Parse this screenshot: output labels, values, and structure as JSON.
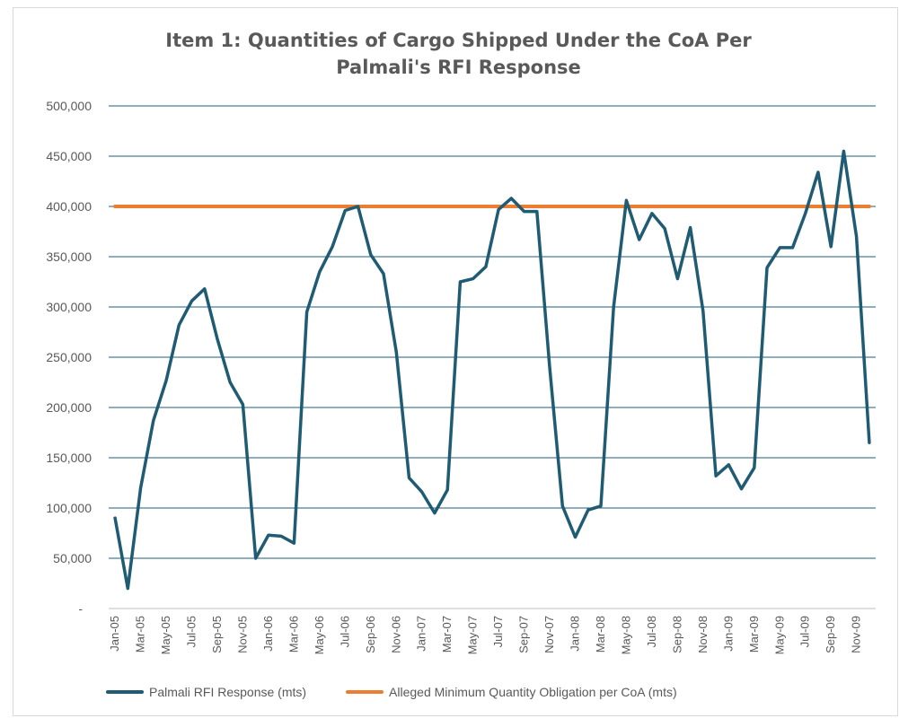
{
  "chart_data": {
    "type": "line",
    "title": "Item 1:  Quantities of Cargo Shipped Under the CoA Per Palmali's RFI Response",
    "title_lines": [
      "Item 1:  Quantities of Cargo Shipped Under the CoA Per",
      "Palmali's RFI Response"
    ],
    "xlabel": "",
    "ylabel": "",
    "ylim": [
      0,
      500000
    ],
    "y_ticks": [
      {
        "value": 0,
        "label": "-"
      },
      {
        "value": 50000,
        "label": "50,000"
      },
      {
        "value": 100000,
        "label": "100,000"
      },
      {
        "value": 150000,
        "label": "150,000"
      },
      {
        "value": 200000,
        "label": "200,000"
      },
      {
        "value": 250000,
        "label": "250,000"
      },
      {
        "value": 300000,
        "label": "300,000"
      },
      {
        "value": 350000,
        "label": "350,000"
      },
      {
        "value": 400000,
        "label": "400,000"
      },
      {
        "value": 450000,
        "label": "450,000"
      },
      {
        "value": 500000,
        "label": "500,000"
      }
    ],
    "x": [
      "Jan-05",
      "Feb-05",
      "Mar-05",
      "Apr-05",
      "May-05",
      "Jun-05",
      "Jul-05",
      "Aug-05",
      "Sep-05",
      "Oct-05",
      "Nov-05",
      "Dec-05",
      "Jan-06",
      "Feb-06",
      "Mar-06",
      "Apr-06",
      "May-06",
      "Jun-06",
      "Jul-06",
      "Aug-06",
      "Sep-06",
      "Oct-06",
      "Nov-06",
      "Dec-06",
      "Jan-07",
      "Feb-07",
      "Mar-07",
      "Apr-07",
      "May-07",
      "Jun-07",
      "Jul-07",
      "Aug-07",
      "Sep-07",
      "Oct-07",
      "Nov-07",
      "Dec-07",
      "Jan-08",
      "Feb-08",
      "Mar-08",
      "Apr-08",
      "May-08",
      "Jun-08",
      "Jul-08",
      "Aug-08",
      "Sep-08",
      "Oct-08",
      "Nov-08",
      "Dec-08",
      "Jan-09",
      "Feb-09",
      "Mar-09",
      "Apr-09",
      "May-09",
      "Jun-09",
      "Jul-09",
      "Aug-09",
      "Sep-09",
      "Oct-09",
      "Nov-09",
      "Dec-09"
    ],
    "x_tick_labels": [
      "Jan-05",
      "Mar-05",
      "May-05",
      "Jul-05",
      "Sep-05",
      "Nov-05",
      "Jan-06",
      "Mar-06",
      "May-06",
      "Jul-06",
      "Sep-06",
      "Nov-06",
      "Jan-07",
      "Mar-07",
      "May-07",
      "Jul-07",
      "Sep-07",
      "Nov-07",
      "Jan-08",
      "Mar-08",
      "May-08",
      "Jul-08",
      "Sep-08",
      "Nov-08",
      "Jan-09",
      "Mar-09",
      "May-09",
      "Jul-09",
      "Sep-09",
      "Nov-09"
    ],
    "series": [
      {
        "name": "Palmali RFI Response (mts)",
        "color": "#1f5c74",
        "values": [
          90000,
          20000,
          120000,
          187000,
          227000,
          282000,
          306000,
          318000,
          268000,
          225000,
          203000,
          50000,
          73000,
          72000,
          65000,
          295000,
          335000,
          360000,
          396000,
          400000,
          352000,
          333000,
          255000,
          130000,
          116000,
          95000,
          118000,
          325000,
          328000,
          340000,
          397000,
          408000,
          395000,
          395000,
          240000,
          102000,
          71000,
          98000,
          102000,
          300000,
          406000,
          367000,
          393000,
          378000,
          328000,
          379000,
          296000,
          132000,
          143000,
          119000,
          140000,
          339000,
          359000,
          359000,
          393000,
          434000,
          360000,
          455000,
          370000,
          165000
        ]
      },
      {
        "name": "Alleged Minimum Quantity Obligation per CoA (mts)",
        "color": "#ed7d31",
        "values": [
          400000,
          400000,
          400000,
          400000,
          400000,
          400000,
          400000,
          400000,
          400000,
          400000,
          400000,
          400000,
          400000,
          400000,
          400000,
          400000,
          400000,
          400000,
          400000,
          400000,
          400000,
          400000,
          400000,
          400000,
          400000,
          400000,
          400000,
          400000,
          400000,
          400000,
          400000,
          400000,
          400000,
          400000,
          400000,
          400000,
          400000,
          400000,
          400000,
          400000,
          400000,
          400000,
          400000,
          400000,
          400000,
          400000,
          400000,
          400000,
          400000,
          400000,
          400000,
          400000,
          400000,
          400000,
          400000,
          400000,
          400000,
          400000,
          400000,
          400000
        ]
      }
    ],
    "grid": true,
    "legend_position": "bottom"
  }
}
